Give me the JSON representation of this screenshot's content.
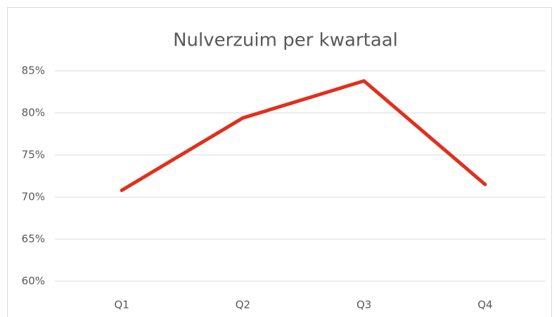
{
  "chart_data": {
    "type": "line",
    "title": "Nulverzuim per kwartaal",
    "categories": [
      "Q1",
      "Q2",
      "Q3",
      "Q4"
    ],
    "values": [
      70.8,
      79.4,
      83.8,
      71.5
    ],
    "color": "#e0301e",
    "ylim": [
      60,
      85
    ],
    "yticks": [
      {
        "value": 60,
        "label": "60%"
      },
      {
        "value": 65,
        "label": "65%"
      },
      {
        "value": 70,
        "label": "70%"
      },
      {
        "value": 75,
        "label": "75%"
      },
      {
        "value": 80,
        "label": "80%"
      },
      {
        "value": 85,
        "label": "85%"
      }
    ],
    "grid": true
  }
}
